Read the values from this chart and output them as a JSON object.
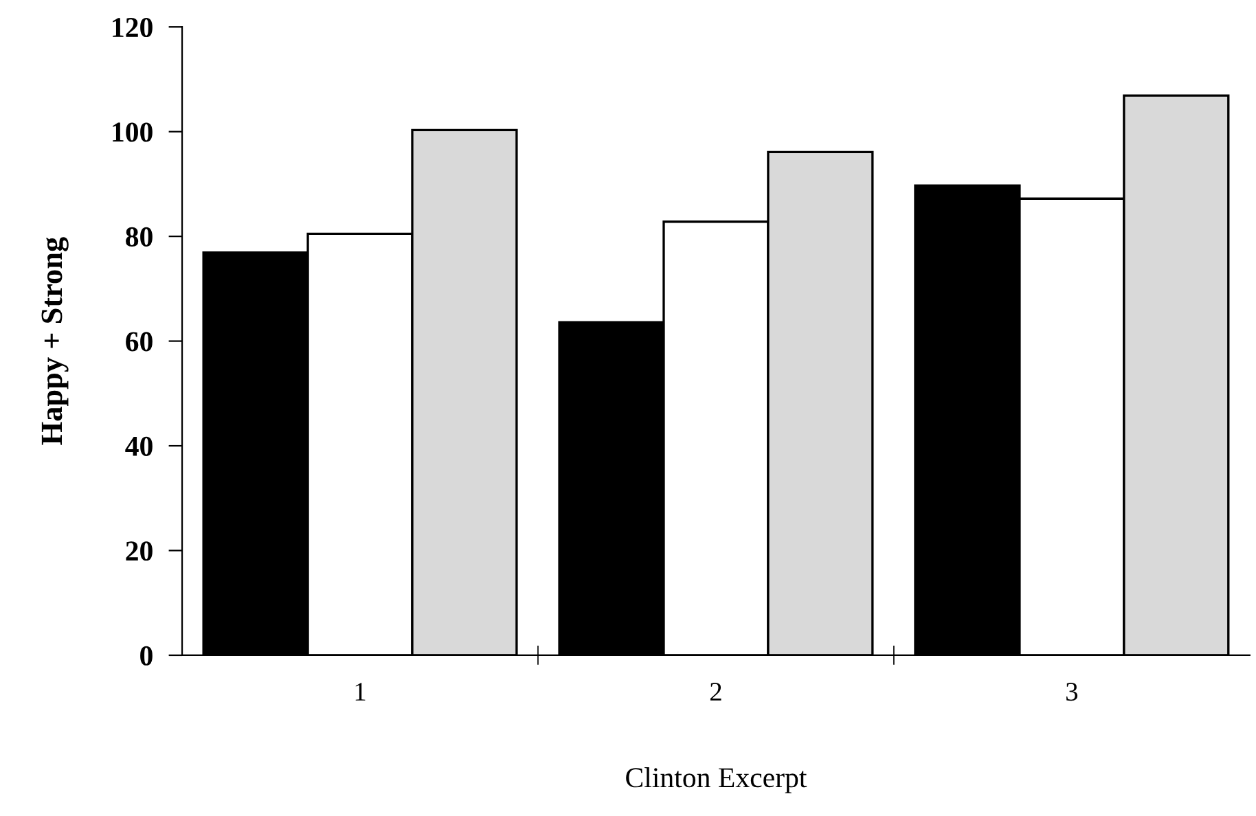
{
  "chart_data": {
    "type": "bar",
    "xlabel": "Clinton Excerpt",
    "ylabel": "Happy + Strong",
    "categories": [
      "1",
      "2",
      "3"
    ],
    "series": [
      {
        "color": "#000000",
        "values": [
          76.9,
          63.6,
          89.7
        ]
      },
      {
        "color": "#ffffff",
        "values": [
          80.5,
          82.8,
          87.2
        ]
      },
      {
        "color": "#d9d9d9",
        "values": [
          100.3,
          96.1,
          106.9
        ]
      }
    ],
    "ylim": [
      0,
      120
    ],
    "yticks": [
      0,
      20,
      40,
      60,
      80,
      100,
      120
    ],
    "grid": false
  }
}
